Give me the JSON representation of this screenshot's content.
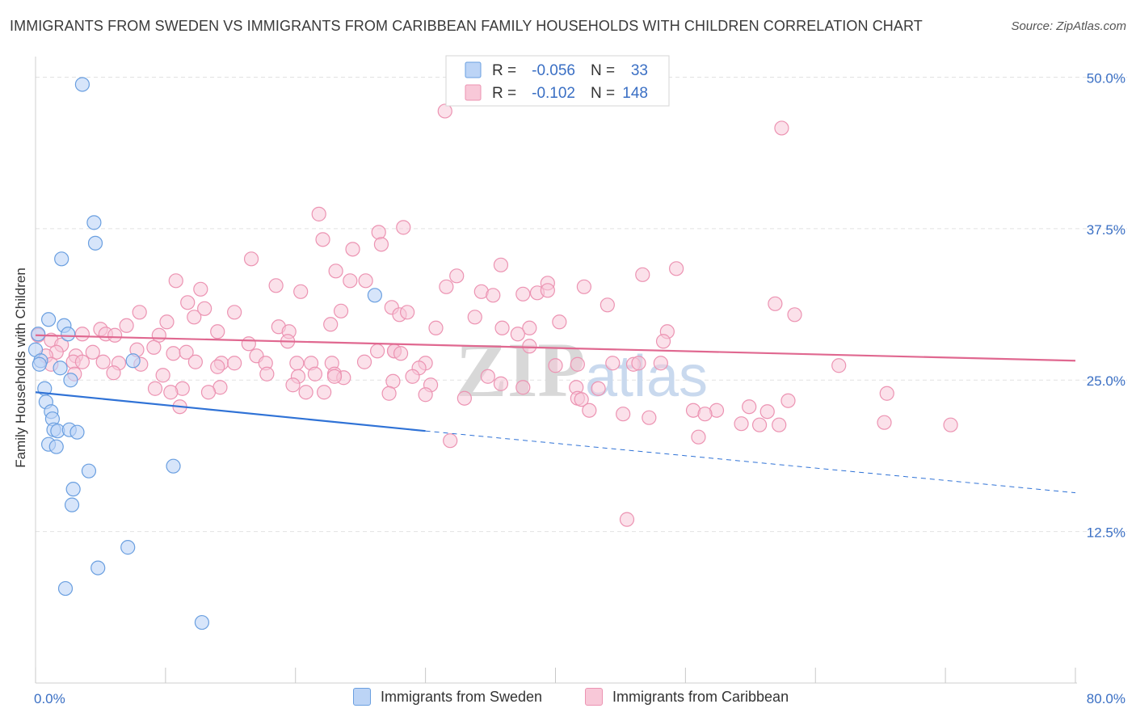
{
  "header": {
    "title": "IMMIGRANTS FROM SWEDEN VS IMMIGRANTS FROM CARIBBEAN FAMILY HOUSEHOLDS WITH CHILDREN CORRELATION CHART",
    "source": "Source: ZipAtlas.com"
  },
  "colors": {
    "sweden_fill": "#bcd4f6",
    "sweden_stroke": "#6a9fe0",
    "sweden_line": "#2f72d6",
    "caribbean_fill": "#f8c8d8",
    "caribbean_stroke": "#ec93b2",
    "caribbean_line": "#e06890",
    "value_text": "#3a6fc4",
    "grid": "#e2e2e2"
  },
  "chart_data": {
    "type": "scatter",
    "title": "IMMIGRANTS FROM SWEDEN VS IMMIGRANTS FROM CARIBBEAN FAMILY HOUSEHOLDS WITH CHILDREN CORRELATION CHART",
    "xlabel": "",
    "ylabel": "Family Households with Children",
    "xlim": [
      0,
      80
    ],
    "ylim": [
      0,
      52.5
    ],
    "x_tick_labels": [
      "0.0%",
      "80.0%"
    ],
    "y_ticks": [
      12.5,
      25.0,
      37.5,
      50.0
    ],
    "y_tick_labels": [
      "12.5%",
      "25.0%",
      "37.5%",
      "50.0%"
    ],
    "grid": true,
    "legend_position": "top-center",
    "watermark": "ZIPatlas",
    "legend": [
      {
        "series": "Immigrants from Sweden",
        "r_label": "R =",
        "r_value": "-0.056",
        "n_label": "N =",
        "n_value": "33"
      },
      {
        "series": "Immigrants from Caribbean",
        "r_label": "R =",
        "r_value": "-0.102",
        "n_label": "N =",
        "n_value": "148"
      }
    ],
    "series": [
      {
        "name": "Immigrants from Sweden",
        "trend": {
          "x0": 0,
          "y0": 24.0,
          "x1": 30,
          "y1": 20.8,
          "dash_to_x": 80,
          "dash_to_y": 15.7
        },
        "points": [
          [
            3.6,
            49.4
          ],
          [
            4.5,
            38.0
          ],
          [
            4.6,
            36.3
          ],
          [
            2.0,
            35.0
          ],
          [
            1.0,
            30.0
          ],
          [
            2.2,
            29.5
          ],
          [
            2.5,
            28.8
          ],
          [
            0.2,
            28.8
          ],
          [
            0.0,
            27.5
          ],
          [
            0.4,
            26.6
          ],
          [
            0.3,
            26.3
          ],
          [
            1.9,
            26.0
          ],
          [
            7.5,
            26.6
          ],
          [
            2.7,
            25.0
          ],
          [
            0.7,
            24.3
          ],
          [
            0.8,
            23.2
          ],
          [
            1.2,
            22.4
          ],
          [
            1.3,
            21.8
          ],
          [
            1.4,
            20.9
          ],
          [
            1.7,
            20.8
          ],
          [
            2.6,
            20.9
          ],
          [
            3.2,
            20.7
          ],
          [
            1.0,
            19.7
          ],
          [
            1.6,
            19.5
          ],
          [
            4.1,
            17.5
          ],
          [
            10.6,
            17.9
          ],
          [
            2.9,
            16.0
          ],
          [
            2.8,
            14.7
          ],
          [
            7.1,
            11.2
          ],
          [
            4.8,
            9.5
          ],
          [
            2.3,
            7.8
          ],
          [
            12.8,
            5.0
          ],
          [
            26.1,
            32.0
          ]
        ]
      },
      {
        "name": "Immigrants from Caribbean",
        "trend": {
          "x0": 0,
          "y0": 28.7,
          "x1": 80,
          "y1": 26.6
        },
        "points": [
          [
            31.5,
            47.2
          ],
          [
            57.4,
            45.8
          ],
          [
            21.8,
            38.7
          ],
          [
            26.4,
            37.2
          ],
          [
            28.3,
            37.6
          ],
          [
            22.1,
            36.6
          ],
          [
            24.4,
            35.8
          ],
          [
            26.6,
            36.2
          ],
          [
            16.6,
            35.0
          ],
          [
            23.1,
            34.0
          ],
          [
            35.8,
            34.5
          ],
          [
            32.4,
            33.6
          ],
          [
            46.7,
            33.7
          ],
          [
            39.4,
            33.0
          ],
          [
            49.3,
            34.2
          ],
          [
            10.8,
            33.2
          ],
          [
            18.5,
            32.8
          ],
          [
            24.2,
            33.2
          ],
          [
            25.4,
            33.2
          ],
          [
            20.4,
            32.3
          ],
          [
            12.7,
            32.5
          ],
          [
            31.6,
            32.7
          ],
          [
            34.3,
            32.3
          ],
          [
            37.5,
            32.1
          ],
          [
            35.2,
            32.0
          ],
          [
            38.6,
            32.2
          ],
          [
            39.4,
            32.4
          ],
          [
            11.7,
            31.4
          ],
          [
            27.4,
            31.0
          ],
          [
            42.2,
            32.7
          ],
          [
            56.9,
            31.3
          ],
          [
            8.0,
            30.6
          ],
          [
            12.2,
            30.2
          ],
          [
            13.0,
            30.9
          ],
          [
            15.3,
            30.6
          ],
          [
            23.5,
            30.7
          ],
          [
            28.0,
            30.4
          ],
          [
            28.6,
            30.6
          ],
          [
            33.8,
            30.2
          ],
          [
            44.0,
            31.2
          ],
          [
            58.4,
            30.4
          ],
          [
            10.1,
            29.8
          ],
          [
            7.0,
            29.5
          ],
          [
            5.0,
            29.2
          ],
          [
            14.0,
            29.0
          ],
          [
            18.7,
            29.4
          ],
          [
            19.5,
            29.0
          ],
          [
            22.7,
            29.6
          ],
          [
            30.8,
            29.3
          ],
          [
            35.9,
            29.3
          ],
          [
            38.0,
            29.3
          ],
          [
            37.1,
            28.8
          ],
          [
            48.6,
            29.0
          ],
          [
            40.3,
            29.8
          ],
          [
            3.6,
            28.8
          ],
          [
            5.4,
            28.8
          ],
          [
            9.5,
            28.7
          ],
          [
            6.1,
            28.7
          ],
          [
            0.2,
            28.7
          ],
          [
            1.2,
            28.3
          ],
          [
            2.0,
            27.9
          ],
          [
            7.8,
            27.5
          ],
          [
            9.1,
            27.7
          ],
          [
            19.4,
            28.2
          ],
          [
            16.4,
            28.0
          ],
          [
            1.6,
            27.3
          ],
          [
            3.1,
            27.0
          ],
          [
            4.4,
            27.3
          ],
          [
            10.6,
            27.2
          ],
          [
            11.6,
            27.3
          ],
          [
            17.0,
            27.0
          ],
          [
            26.3,
            27.4
          ],
          [
            27.6,
            27.4
          ],
          [
            27.6,
            27.4
          ],
          [
            28.1,
            27.2
          ],
          [
            38.0,
            27.8
          ],
          [
            48.3,
            28.2
          ],
          [
            0.8,
            27.0
          ],
          [
            1.2,
            26.3
          ],
          [
            2.9,
            26.5
          ],
          [
            3.6,
            26.5
          ],
          [
            5.2,
            26.5
          ],
          [
            6.4,
            26.4
          ],
          [
            8.1,
            26.3
          ],
          [
            12.3,
            26.5
          ],
          [
            14.3,
            26.4
          ],
          [
            15.3,
            26.4
          ],
          [
            17.7,
            26.4
          ],
          [
            21.2,
            26.4
          ],
          [
            22.8,
            26.4
          ],
          [
            25.3,
            26.5
          ],
          [
            30.0,
            26.4
          ],
          [
            40.0,
            26.2
          ],
          [
            41.7,
            26.3
          ],
          [
            44.4,
            26.4
          ],
          [
            46.0,
            26.3
          ],
          [
            46.4,
            26.4
          ],
          [
            48.1,
            26.4
          ],
          [
            61.8,
            26.2
          ],
          [
            20.1,
            26.4
          ],
          [
            29.5,
            26.0
          ],
          [
            14.0,
            26.1
          ],
          [
            23.0,
            25.5
          ],
          [
            21.5,
            25.5
          ],
          [
            23.7,
            25.2
          ],
          [
            6.0,
            25.6
          ],
          [
            3.0,
            25.5
          ],
          [
            9.8,
            25.4
          ],
          [
            17.8,
            25.5
          ],
          [
            20.2,
            25.3
          ],
          [
            23.0,
            25.3
          ],
          [
            27.5,
            24.9
          ],
          [
            29.0,
            25.3
          ],
          [
            34.8,
            25.3
          ],
          [
            30.4,
            24.6
          ],
          [
            35.8,
            24.7
          ],
          [
            14.2,
            24.4
          ],
          [
            11.3,
            24.3
          ],
          [
            9.2,
            24.3
          ],
          [
            19.8,
            24.6
          ],
          [
            10.4,
            24.0
          ],
          [
            37.5,
            24.4
          ],
          [
            41.6,
            24.4
          ],
          [
            43.3,
            24.3
          ],
          [
            13.3,
            24.0
          ],
          [
            20.8,
            24.0
          ],
          [
            27.2,
            23.9
          ],
          [
            22.2,
            24.0
          ],
          [
            30.0,
            23.8
          ],
          [
            41.7,
            23.5
          ],
          [
            33.0,
            23.5
          ],
          [
            42.0,
            23.4
          ],
          [
            57.9,
            23.3
          ],
          [
            65.5,
            23.9
          ],
          [
            11.1,
            22.8
          ],
          [
            42.6,
            22.5
          ],
          [
            52.4,
            22.5
          ],
          [
            54.9,
            22.8
          ],
          [
            50.6,
            22.5
          ],
          [
            51.5,
            22.2
          ],
          [
            45.2,
            22.2
          ],
          [
            56.3,
            22.4
          ],
          [
            54.3,
            21.4
          ],
          [
            47.2,
            21.9
          ],
          [
            65.3,
            21.5
          ],
          [
            70.4,
            21.3
          ],
          [
            57.2,
            21.3
          ],
          [
            55.7,
            21.3
          ],
          [
            31.9,
            20.0
          ],
          [
            51.0,
            20.3
          ],
          [
            45.5,
            13.5
          ]
        ]
      }
    ]
  },
  "bottom_legend": {
    "items": [
      "Immigrants from Sweden",
      "Immigrants from Caribbean"
    ]
  }
}
